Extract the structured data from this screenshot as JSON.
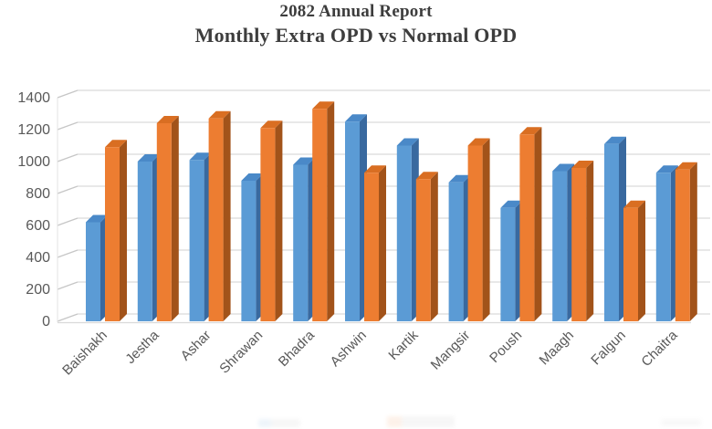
{
  "title": {
    "line1": "2082 Annual Report",
    "line2": "Monthly Extra OPD vs Normal OPD"
  },
  "colors": {
    "blue_front": "#5B9BD5",
    "blue_top": "#4A89C8",
    "blue_side": "#39699F",
    "orange_front": "#ED7D31",
    "orange_top": "#D96E22",
    "orange_side": "#A2531A",
    "gridline": "#D9D9D9",
    "axis_connector": "#C6C6C6",
    "axis_text": "#595959",
    "title_text": "#3D3D3D"
  },
  "chart_data": {
    "type": "bar",
    "style": "3d-clustered-column",
    "title": "2082 Annual Report — Monthly Extra OPD vs Normal OPD",
    "xlabel": "",
    "ylabel": "",
    "ylim": [
      0,
      1400
    ],
    "y_ticks": [
      0,
      200,
      400,
      600,
      800,
      1000,
      1200,
      1400
    ],
    "grid": true,
    "legend_position": "bottom (clipped out of view)",
    "categories": [
      "Baishakh",
      "Jestha",
      "Ashar",
      "Shrawan",
      "Bhadra",
      "Ashwin",
      "Kartik",
      "Mangsir",
      "Poush",
      "Maagh",
      "Falgun",
      "Chaitra"
    ],
    "series": [
      {
        "name": "Extra OPD",
        "color": "#5B9BD5",
        "values": [
          620,
          1000,
          1010,
          880,
          980,
          1250,
          1100,
          870,
          710,
          940,
          1110,
          930
        ]
      },
      {
        "name": "Normal OPD",
        "color": "#ED7D31",
        "values": [
          1090,
          1240,
          1270,
          1210,
          1330,
          930,
          890,
          1100,
          1170,
          960,
          710,
          950
        ]
      }
    ]
  }
}
